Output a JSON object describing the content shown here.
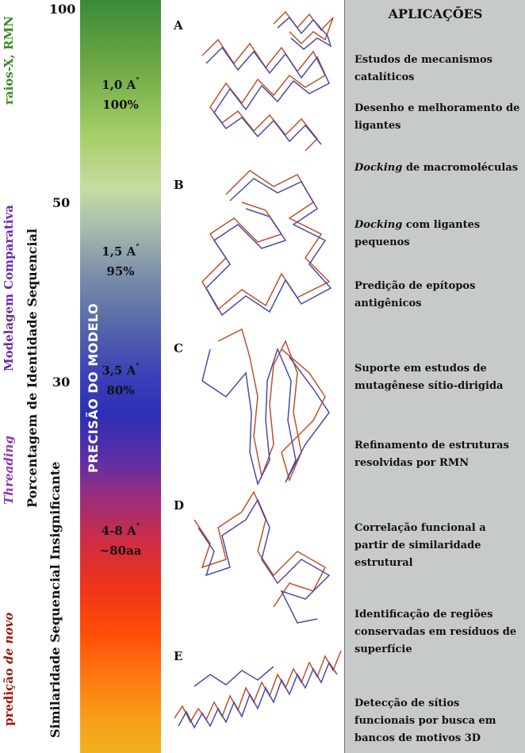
{
  "left_labels": {
    "rmn": "raios-X, RMN",
    "comparativa": "Modelagem Comparativa",
    "threading": "Threading",
    "denovo_prefix": "predição ",
    "denovo_italic": "de novo"
  },
  "axis": {
    "title": "Porcentagem de Identidade Sequencial",
    "subtitle": "Similaridade Sequencial Insignificante",
    "ticks": [
      "100",
      "50",
      "30"
    ]
  },
  "bar": {
    "title": "PRECISÃO DO MODELO",
    "levels": [
      {
        "res": "1,0 A",
        "deg": "°",
        "pct": "100%"
      },
      {
        "res": "1,5 A",
        "deg": "°",
        "pct": "95%"
      },
      {
        "res": "3,5 A",
        "deg": "°",
        "pct": "80%"
      },
      {
        "res": "4-8 A",
        "deg": "°",
        "pct": "~80aa"
      }
    ]
  },
  "structures": [
    "A",
    "B",
    "C",
    "D",
    "E"
  ],
  "colors": {
    "red_trace": "#c0502a",
    "blue_trace": "#4a4aa8",
    "panel": "#c6cacb"
  },
  "applications": {
    "title": "APLICAÇÕES",
    "items": [
      {
        "italic": "",
        "text": "Estudos de mecanismos catalíticos"
      },
      {
        "italic": "",
        "text": "Desenho e melhoramento de ligantes"
      },
      {
        "italic": "Docking",
        "text": " de macromoléculas"
      },
      {
        "italic": "Docking",
        "text": " com ligantes pequenos"
      },
      {
        "italic": "",
        "text": "Predição de epítopos antigênicos"
      },
      {
        "italic": "",
        "text": "Suporte em estudos de mutagênese sítio-dirigida"
      },
      {
        "italic": "",
        "text": "Refinamento de estruturas resolvidas por RMN"
      },
      {
        "italic": "",
        "text": "Correlação funcional a partir de similaridade estrutural"
      },
      {
        "italic": "",
        "text": "Identificação de regiões conservadas em resíduos de superfície"
      },
      {
        "italic": "",
        "text": "Detecção de sítios funcionais por busca em bancos de motivos 3D"
      }
    ]
  }
}
